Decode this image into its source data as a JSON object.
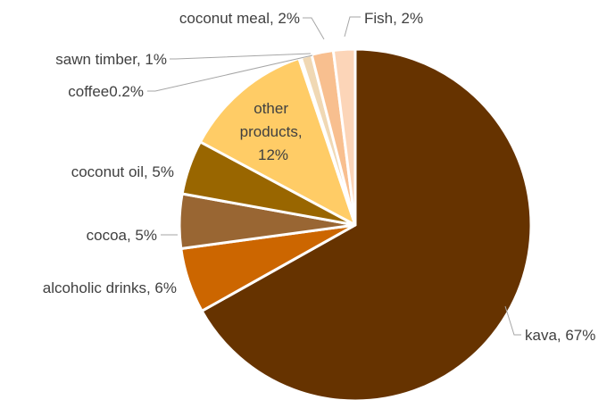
{
  "chart_data": {
    "type": "pie",
    "title": "",
    "slices": [
      {
        "name": "kava",
        "value": 67,
        "color": "#663300",
        "label": "kava, 67%"
      },
      {
        "name": "alcoholic drinks",
        "value": 6,
        "color": "#cc6600",
        "label": "alcoholic drinks, 6%"
      },
      {
        "name": "cocoa",
        "value": 5,
        "color": "#996633",
        "label": "cocoa, 5%"
      },
      {
        "name": "coconut oil",
        "value": 5,
        "color": "#996600",
        "label": "coconut oil, 5%"
      },
      {
        "name": "other products",
        "value": 12,
        "color": "#ffcc66",
        "label": "other products, 12%",
        "label_lines": [
          "other",
          "products,",
          "12%"
        ]
      },
      {
        "name": "coffee",
        "value": 0.2,
        "color": "#e6d2aa",
        "label": "coffee0.2%"
      },
      {
        "name": "sawn timber",
        "value": 1,
        "color": "#f0d8b4",
        "label": "sawn timber, 1%"
      },
      {
        "name": "coconut meal",
        "value": 2,
        "color": "#f8bf8f",
        "label": "coconut meal, 2%"
      },
      {
        "name": "Fish",
        "value": 2,
        "color": "#fcd5b8",
        "label": "Fish, 2%"
      }
    ]
  }
}
